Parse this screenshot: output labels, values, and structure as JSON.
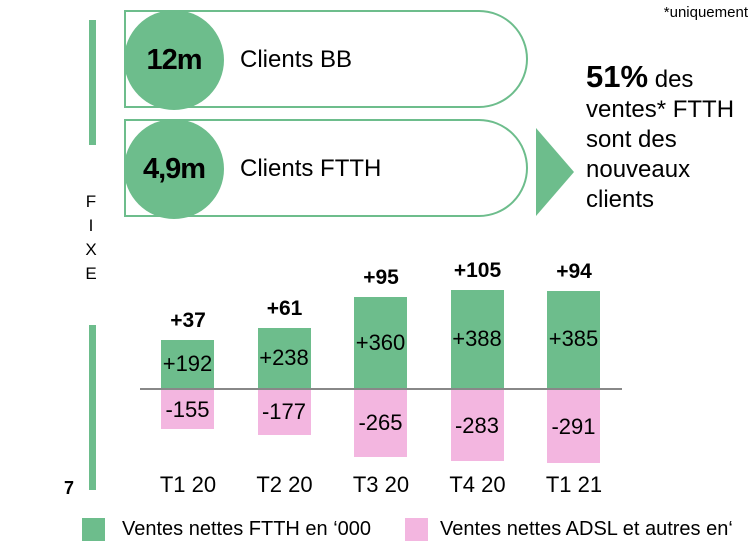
{
  "footnote": "*uniquement",
  "side_label": [
    "F",
    "I",
    "X",
    "E"
  ],
  "page_number": "7",
  "kpis": [
    {
      "value": "12m",
      "label": "Clients BB"
    },
    {
      "value": "4,9m",
      "label": "Clients FTTH"
    }
  ],
  "callout": {
    "highlight": "51%",
    "rest_line1": " des",
    "lines": [
      "ventes* FTTH",
      "sont des",
      "nouveaux",
      "clients"
    ]
  },
  "colors": {
    "ftth": "#6dbd8c",
    "adsl": "#f3b6e0",
    "axis": "#888888"
  },
  "chart_data": {
    "type": "bar",
    "categories": [
      "T1 20",
      "T2 20",
      "T3 20",
      "T4 20",
      "T1 21"
    ],
    "series": [
      {
        "name": "Ventes nettes FTTH  en ‘000",
        "values": [
          192,
          238,
          360,
          388,
          385
        ],
        "labels": [
          "+192",
          "+238",
          "+360",
          "+388",
          "+385"
        ]
      },
      {
        "name": "Ventes nettes ADSL et autres en‘",
        "values": [
          -155,
          -177,
          -265,
          -283,
          -291
        ],
        "labels": [
          "-155",
          "-177",
          "-265",
          "-283",
          "-291"
        ]
      }
    ],
    "totals": {
      "values": [
        37,
        61,
        95,
        105,
        94
      ],
      "labels": [
        "+37",
        "+61",
        "+95",
        "+105",
        "+94"
      ]
    },
    "stacked": true,
    "legend": "bottom",
    "grid": false
  }
}
